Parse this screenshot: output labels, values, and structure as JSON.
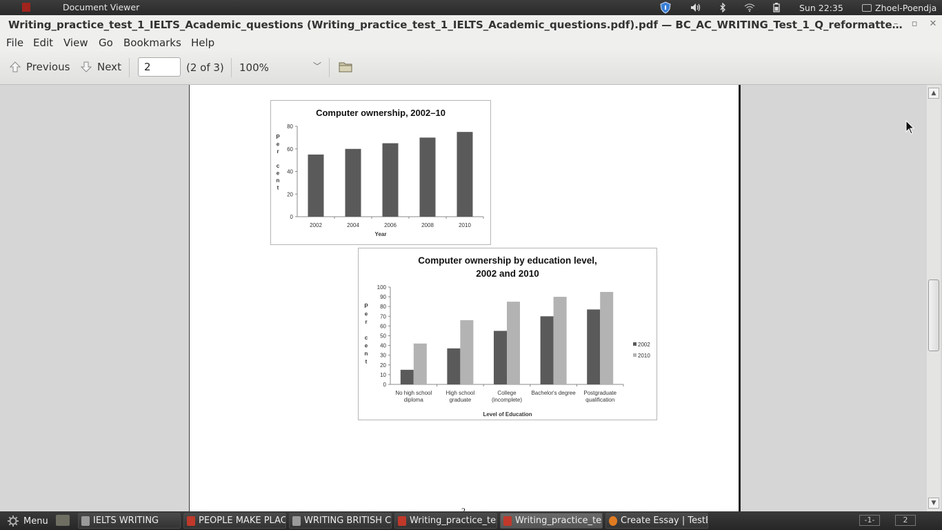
{
  "top_panel": {
    "app_title": "Document Viewer",
    "clock": "Sun 22:35",
    "user": "Zhoel-Poendja"
  },
  "window": {
    "title": "Writing_practice_test_1_IELTS_Academic_questions (Writing_practice_test_1_IELTS_Academic_questions.pdf).pdf — BC_AC_WRITING_Test_1_Q_reformatte…"
  },
  "menu": {
    "file": "File",
    "edit": "Edit",
    "view": "View",
    "go": "Go",
    "bookmarks": "Bookmarks",
    "help": "Help"
  },
  "toolbar": {
    "previous": "Previous",
    "next": "Next",
    "page_value": "2",
    "page_count": "(2 of 3)",
    "zoom": "100%"
  },
  "document": {
    "page_number": "2"
  },
  "chart_data": [
    {
      "type": "bar",
      "title": "Computer ownership, 2002–10",
      "xlabel": "Year",
      "ylabel": "Per cent",
      "categories": [
        "2002",
        "2004",
        "2006",
        "2008",
        "2010"
      ],
      "values": [
        55,
        60,
        65,
        70,
        75
      ],
      "ylim": [
        0,
        80
      ],
      "yticks": [
        0,
        20,
        40,
        60,
        80
      ],
      "bar_color": "#5a5a5a"
    },
    {
      "type": "bar",
      "title_line1": "Computer ownership by education level,",
      "title_line2": "2002 and 2010",
      "xlabel": "Level of Education",
      "ylabel": "Per cent",
      "categories": [
        [
          "No high school",
          "diploma"
        ],
        [
          "High school",
          "graduate"
        ],
        [
          "College",
          "(incomplete)"
        ],
        [
          "Bachelor's degree"
        ],
        [
          "Postgraduate",
          "qualification"
        ]
      ],
      "series": [
        {
          "name": "2002",
          "values": [
            15,
            37,
            55,
            70,
            77
          ],
          "color": "#5a5a5a"
        },
        {
          "name": "2010",
          "values": [
            42,
            66,
            85,
            90,
            95
          ],
          "color": "#b3b3b3"
        }
      ],
      "ylim": [
        0,
        100
      ],
      "yticks": [
        0,
        10,
        20,
        30,
        40,
        50,
        60,
        70,
        80,
        90,
        100
      ],
      "legend": "right"
    }
  ],
  "taskbar": {
    "menu": "Menu",
    "tasks": [
      {
        "label": "IELTS WRITING",
        "icon_color": "#9a9a9a"
      },
      {
        "label": "PEOPLE MAKE PLAC...",
        "icon_color": "#c0392b"
      },
      {
        "label": "WRITING BRITISH C...",
        "icon_color": "#9a9a9a"
      },
      {
        "label": "Writing_practice_test...",
        "icon_color": "#c0392b"
      },
      {
        "label": "Writing_practice_test...",
        "icon_color": "#c0392b"
      },
      {
        "label": "Create Essay | TestB...",
        "icon_color": "#e07b22"
      }
    ],
    "workspace1": "-1-",
    "workspace2": "2"
  }
}
